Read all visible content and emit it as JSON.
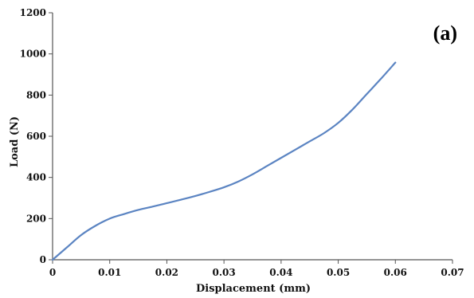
{
  "chart_data": {
    "type": "line",
    "title": "",
    "panel_label": "(a)",
    "xlabel": "Displacement (mm)",
    "ylabel": "Load (N)",
    "xlim": [
      0,
      0.07
    ],
    "ylim": [
      0,
      1200
    ],
    "xticks": [
      0,
      0.01,
      0.02,
      0.03,
      0.04,
      0.05,
      0.06,
      0.07
    ],
    "xtick_labels": [
      "0",
      "0.01",
      "0.02",
      "0.03",
      "0.04",
      "0.05",
      "0.06",
      "0.07"
    ],
    "yticks": [
      0,
      200,
      400,
      600,
      800,
      1000,
      1200
    ],
    "ytick_labels": [
      "0",
      "200",
      "400",
      "600",
      "800",
      "1000",
      "1200"
    ],
    "grid": false,
    "series": [
      {
        "color": "#5b84c2",
        "x": [
          0,
          0.0025,
          0.005,
          0.0075,
          0.01,
          0.0125,
          0.015,
          0.0175,
          0.02,
          0.0225,
          0.025,
          0.0275,
          0.03,
          0.0325,
          0.035,
          0.0375,
          0.04,
          0.0425,
          0.045,
          0.0475,
          0.05,
          0.0525,
          0.055,
          0.0575,
          0.06
        ],
        "y": [
          0,
          60,
          120,
          165,
          200,
          222,
          242,
          258,
          275,
          292,
          310,
          330,
          352,
          380,
          415,
          455,
          495,
          535,
          575,
          615,
          665,
          730,
          805,
          880,
          958
        ]
      }
    ]
  }
}
